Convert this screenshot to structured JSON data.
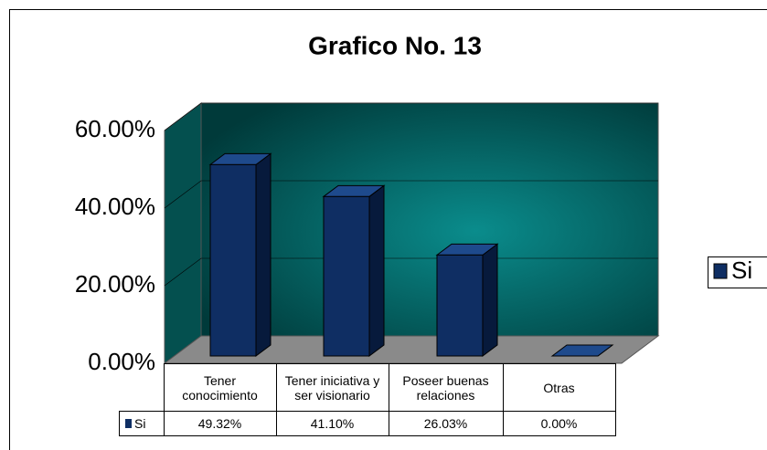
{
  "chart_data": {
    "type": "bar3d",
    "title": "Grafico No. 13",
    "categories": [
      "Tener conocimiento",
      "Tener iniciativa y ser visionario",
      "Poseer buenas relaciones",
      "Otras"
    ],
    "series": [
      {
        "name": "Si",
        "color": "#0f2e63",
        "values": [
          49.32,
          41.1,
          26.03,
          0
        ],
        "value_labels": [
          "49.32%",
          "41.10%",
          "26.03%",
          "0.00%"
        ]
      }
    ],
    "ylim": [
      0,
      60
    ],
    "yticks": [
      {
        "value": 0,
        "label": "0.00%"
      },
      {
        "value": 20,
        "label": "20.00%"
      },
      {
        "value": 40,
        "label": "40.00%"
      },
      {
        "value": 60,
        "label": "60.00%"
      }
    ],
    "grid": true,
    "legend": "right"
  }
}
